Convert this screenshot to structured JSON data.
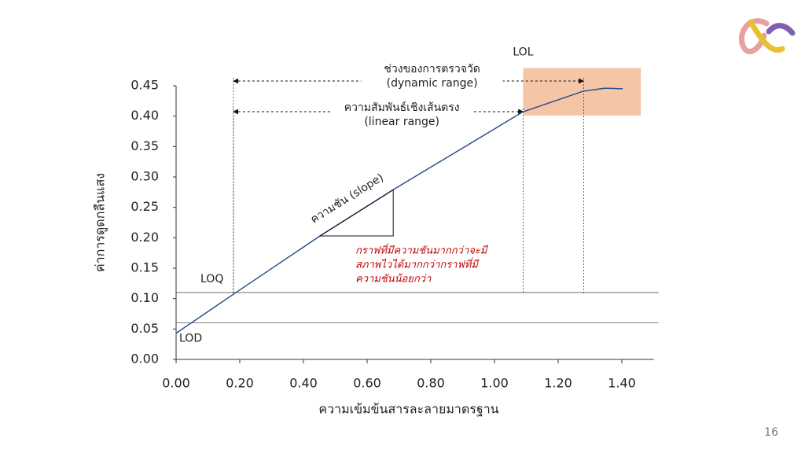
{
  "chart_data": {
    "type": "line",
    "x_label": "ความเข้มข้นสารละลายมาตรฐาน",
    "y_label": "ค่าการดูดกลืนแสง",
    "x": [
      0,
      0.188,
      0.452,
      0.682,
      1.089,
      1.279,
      1.348,
      1.403
    ],
    "series": [
      {
        "color": "#2e4f8c",
        "values": [
          0.043,
          0.11,
          0.203,
          0.279,
          0.407,
          0.441,
          0.446,
          0.445
        ]
      }
    ],
    "xlim": [
      0,
      1.5
    ],
    "ylim": [
      0,
      0.45
    ],
    "xticks": [
      {
        "value": 0,
        "label": "0.00"
      },
      {
        "value": 0.2,
        "label": "0.20"
      },
      {
        "value": 0.4,
        "label": "0.40"
      },
      {
        "value": 0.6,
        "label": "0.60"
      },
      {
        "value": 0.8,
        "label": "0.80"
      },
      {
        "value": 1,
        "label": "1.00"
      },
      {
        "value": 1.2,
        "label": "1.20"
      },
      {
        "value": 1.4,
        "label": "1.40"
      }
    ],
    "yticks": [
      {
        "value": 0,
        "label": "0.00"
      },
      {
        "value": 0.05,
        "label": "0.05"
      },
      {
        "value": 0.1,
        "label": "0.10"
      },
      {
        "value": 0.15,
        "label": "0.15"
      },
      {
        "value": 0.2,
        "label": "0.20"
      },
      {
        "value": 0.25,
        "label": "0.25"
      },
      {
        "value": 0.3,
        "label": "0.30"
      },
      {
        "value": 0.35,
        "label": "0.35"
      },
      {
        "value": 0.4,
        "label": "0.40"
      },
      {
        "value": 0.45,
        "label": "0.45"
      }
    ],
    "reference_lines": [
      {
        "label": "LOQ",
        "y": 0.11
      },
      {
        "label": "LOD",
        "y": 0.06
      }
    ],
    "dynamic_range": {
      "label": [
        "ช่วงของการตรวจวัด",
        "(dynamic range)"
      ],
      "x": [
        0.18,
        1.28
      ]
    },
    "linear_range": {
      "label": [
        "ความสัมพันธ์เชิงเส้นตรง",
        "(linear range)"
      ],
      "x": [
        0.18,
        1.09
      ]
    },
    "lol_box": {
      "label": "LOL",
      "x": [
        1.09,
        1.46
      ],
      "y": [
        0.401,
        0.479
      ],
      "color": "#f5c6a5"
    },
    "slope": {
      "label": "ความชัน (slope)",
      "x": [
        0.452,
        0.682
      ],
      "y": [
        0.203,
        0.279
      ]
    },
    "note": {
      "lines": [
        "กราฟที่มีความชันมากกว่าจะมี",
        "สภาพไวได้มากกว่ากราฟที่มี",
        "ความชันน้อยกว่า"
      ],
      "color": "#c00000"
    }
  },
  "page_number": "16"
}
